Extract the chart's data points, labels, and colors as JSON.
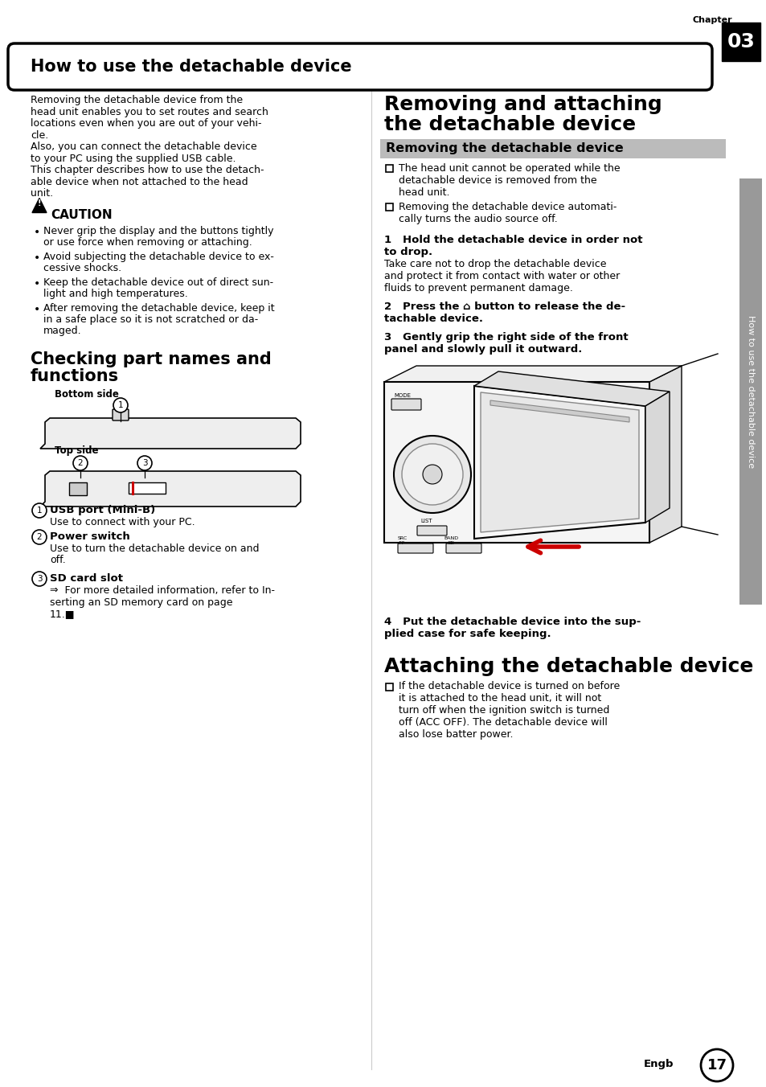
{
  "page_title": "How to use the detachable device",
  "chapter_label": "Chapter",
  "chapter_num": "03",
  "page_num": "17",
  "page_num_label": "Engb",
  "sidebar_text": "How to use the detachable device",
  "left_col": {
    "intro_lines": [
      "Removing the detachable device from the",
      "head unit enables you to set routes and search",
      "locations even when you are out of your vehi-",
      "cle.",
      "Also, you can connect the detachable device",
      "to your PC using the supplied USB cable.",
      "This chapter describes how to use the detach-",
      "able device when not attached to the head",
      "unit."
    ],
    "caution_title": "CAUTION",
    "caution_bullets": [
      [
        "Never grip the display and the buttons tightly",
        "or use force when removing or attaching."
      ],
      [
        "Avoid subjecting the detachable device to ex-",
        "cessive shocks."
      ],
      [
        "Keep the detachable device out of direct sun-",
        "light and high temperatures."
      ],
      [
        "After removing the detachable device, keep it",
        "in a safe place so it is not scratched or da-",
        "maged."
      ]
    ],
    "section2_title_l1": "Checking part names and",
    "section2_title_l2": "functions",
    "bottom_side": "Bottom side",
    "top_side": "Top side",
    "part1_num": "1",
    "part1_label": "USB port (Mini-B)",
    "part1_desc": "Use to connect with your PC.",
    "part2_num": "2",
    "part2_label": "Power switch",
    "part2_desc_lines": [
      "Use to turn the detachable device on and",
      "off."
    ],
    "part3_num": "3",
    "part3_label": "SD card slot",
    "part3_desc_lines": [
      "⇒  For more detailed information, refer to In-",
      "serting an SD memory card on page",
      "11.■"
    ]
  },
  "right_col": {
    "section1_title_l1": "Removing and attaching",
    "section1_title_l2": "the detachable device",
    "section1a_title": "Removing the detachable device",
    "bullets": [
      [
        "The head unit cannot be operated while the",
        "detachable device is removed from the",
        "head unit."
      ],
      [
        "Removing the detachable device automati-",
        "cally turns the audio source off."
      ]
    ],
    "step1_bold_lines": [
      "1   Hold the detachable device in order not",
      "to drop."
    ],
    "step1_desc_lines": [
      "Take care not to drop the detachable device",
      "and protect it from contact with water or other",
      "fluids to prevent permanent damage."
    ],
    "step2_bold_lines": [
      "2   Press the ⌂ button to release the de-",
      "tachable device."
    ],
    "step3_bold_lines": [
      "3   Gently grip the right side of the front",
      "panel and slowly pull it outward."
    ],
    "step4_bold_lines": [
      "4   Put the detachable device into the sup-",
      "plied case for safe keeping."
    ],
    "section2_title": "Attaching the detachable device",
    "attach_bullet_lines": [
      "If the detachable device is turned on before",
      "it is attached to the head unit, it will not",
      "turn off when the ignition switch is turned",
      "off (ACC OFF). The detachable device will",
      "also lose batter power."
    ]
  },
  "bg_color": "#ffffff",
  "text_color": "#000000"
}
